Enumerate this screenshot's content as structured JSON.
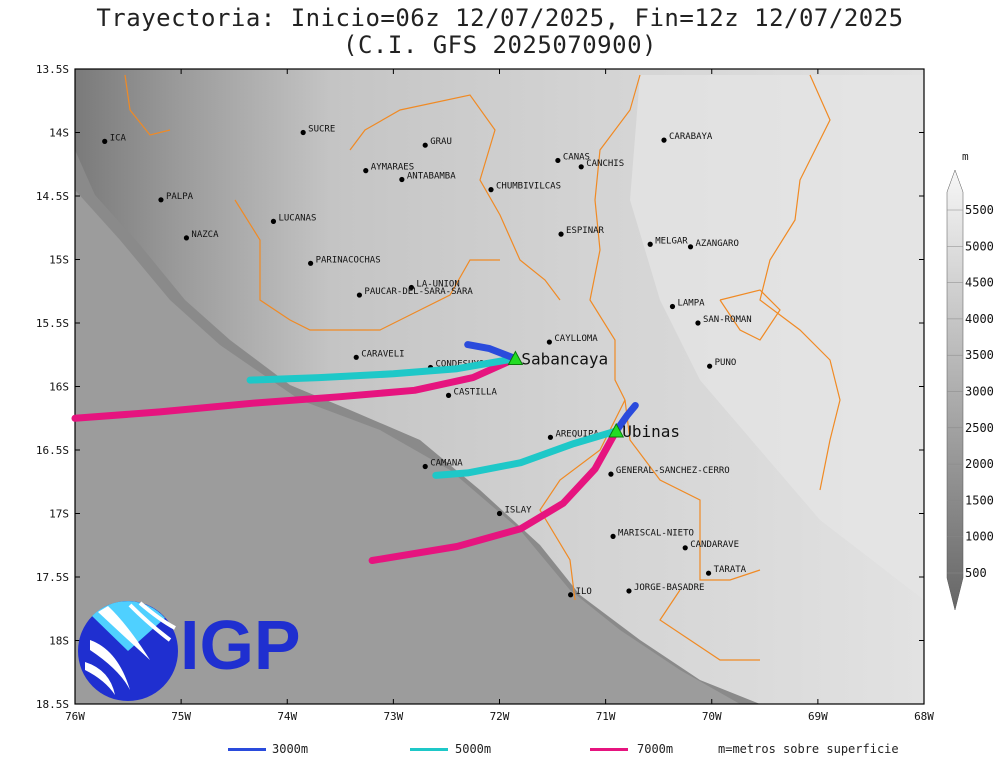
{
  "title": "Trayectoria: Inicio=06z 12/07/2025, Fin=12z 12/07/2025",
  "subtitle": "(C.I. GFS 2025070900)",
  "axes": {
    "lon_ticks": [
      "76W",
      "75W",
      "74W",
      "73W",
      "72W",
      "71W",
      "70W",
      "69W",
      "68W"
    ],
    "lat_ticks": [
      "13.5S",
      "14S",
      "14.5S",
      "15S",
      "15.5S",
      "16S",
      "16.5S",
      "17S",
      "17.5S",
      "18S",
      "18.5S"
    ],
    "lon_range": [
      -76,
      -68
    ],
    "lat_range": [
      -18.5,
      -13.5
    ]
  },
  "colorbar": {
    "unit": "m",
    "labels": [
      "5500",
      "5000",
      "4500",
      "4000",
      "3500",
      "3000",
      "2500",
      "2000",
      "1500",
      "1000",
      "500"
    ]
  },
  "legend": {
    "items": [
      {
        "label": "3000m",
        "color": "#2a4bdc"
      },
      {
        "label": "5000m",
        "color": "#1ec8c8"
      },
      {
        "label": "7000m",
        "color": "#e6147f"
      }
    ],
    "note": "m=metros sobre superficie"
  },
  "logo": {
    "text": "IGP"
  },
  "volcanoes": [
    {
      "name": "Sabancaya",
      "lon": -71.85,
      "lat": -15.78
    },
    {
      "name": "Ubinas",
      "lon": -70.9,
      "lat": -16.35
    }
  ],
  "places": [
    {
      "name": "ICA",
      "lon": -75.72,
      "lat": -14.07
    },
    {
      "name": "SUCRE",
      "lon": -73.85,
      "lat": -14.0
    },
    {
      "name": "GRAU",
      "lon": -72.7,
      "lat": -14.1
    },
    {
      "name": "AYMARAES",
      "lon": -73.26,
      "lat": -14.3
    },
    {
      "name": "ANTABAMBA",
      "lon": -72.92,
      "lat": -14.37
    },
    {
      "name": "CANAS",
      "lon": -71.45,
      "lat": -14.22
    },
    {
      "name": "CANCHIS",
      "lon": -71.23,
      "lat": -14.27
    },
    {
      "name": "CARABAYA",
      "lon": -70.45,
      "lat": -14.06
    },
    {
      "name": "CHUMBIVILCAS",
      "lon": -72.08,
      "lat": -14.45
    },
    {
      "name": "PALPA",
      "lon": -75.19,
      "lat": -14.53
    },
    {
      "name": "NAZCA",
      "lon": -74.95,
      "lat": -14.83
    },
    {
      "name": "LUCANAS",
      "lon": -74.13,
      "lat": -14.7
    },
    {
      "name": "ESPINAR",
      "lon": -71.42,
      "lat": -14.8
    },
    {
      "name": "MELGAR",
      "lon": -70.58,
      "lat": -14.88
    },
    {
      "name": "AZANGARO",
      "lon": -70.2,
      "lat": -14.9
    },
    {
      "name": "PARINACOCHAS",
      "lon": -73.78,
      "lat": -15.03
    },
    {
      "name": "LA-UNION",
      "lon": -72.83,
      "lat": -15.22
    },
    {
      "name": "PAUCAR-DEL-SARA-SARA",
      "lon": -73.32,
      "lat": -15.28
    },
    {
      "name": "LAMPA",
      "lon": -70.37,
      "lat": -15.37
    },
    {
      "name": "SAN-ROMAN",
      "lon": -70.13,
      "lat": -15.5
    },
    {
      "name": "CAYLLOMA",
      "lon": -71.53,
      "lat": -15.65
    },
    {
      "name": "CARAVELI",
      "lon": -73.35,
      "lat": -15.77
    },
    {
      "name": "CONDESUYOS",
      "lon": -72.65,
      "lat": -15.85
    },
    {
      "name": "PUNO",
      "lon": -70.02,
      "lat": -15.84
    },
    {
      "name": "CASTILLA",
      "lon": -72.48,
      "lat": -16.07
    },
    {
      "name": "AREQUIPA",
      "lon": -71.52,
      "lat": -16.4
    },
    {
      "name": "CAMANA",
      "lon": -72.7,
      "lat": -16.63
    },
    {
      "name": "GENERAL-SANCHEZ-CERRO",
      "lon": -70.95,
      "lat": -16.69
    },
    {
      "name": "ISLAY",
      "lon": -72.0,
      "lat": -17.0
    },
    {
      "name": "MARISCAL-NIETO",
      "lon": -70.93,
      "lat": -17.18
    },
    {
      "name": "CANDARAVE",
      "lon": -70.25,
      "lat": -17.27
    },
    {
      "name": "TARATA",
      "lon": -70.03,
      "lat": -17.47
    },
    {
      "name": "ILO",
      "lon": -71.33,
      "lat": -17.64
    },
    {
      "name": "JORGE-BASADRE",
      "lon": -70.78,
      "lat": -17.61
    }
  ],
  "trajectories": [
    {
      "volcano": "Sabancaya",
      "level": "3000m",
      "color": "#2a4bdc",
      "points": [
        [
          -71.85,
          -15.78
        ],
        [
          -72.1,
          -15.7
        ],
        [
          -72.3,
          -15.67
        ]
      ]
    },
    {
      "volcano": "Sabancaya",
      "level": "5000m",
      "color": "#1ec8c8",
      "points": [
        [
          -71.85,
          -15.78
        ],
        [
          -72.4,
          -15.86
        ],
        [
          -73.0,
          -15.9
        ],
        [
          -73.7,
          -15.93
        ],
        [
          -74.35,
          -15.95
        ]
      ]
    },
    {
      "volcano": "Sabancaya",
      "level": "7000m",
      "color": "#e6147f",
      "points": [
        [
          -71.85,
          -15.78
        ],
        [
          -72.25,
          -15.93
        ],
        [
          -72.8,
          -16.03
        ],
        [
          -73.5,
          -16.08
        ],
        [
          -74.3,
          -16.13
        ],
        [
          -75.2,
          -16.2
        ],
        [
          -76.0,
          -16.25
        ]
      ]
    },
    {
      "volcano": "Ubinas",
      "level": "3000m",
      "color": "#2a4bdc",
      "points": [
        [
          -70.9,
          -16.35
        ],
        [
          -70.8,
          -16.23
        ],
        [
          -70.72,
          -16.15
        ]
      ]
    },
    {
      "volcano": "Ubinas",
      "level": "5000m",
      "color": "#1ec8c8",
      "points": [
        [
          -70.9,
          -16.35
        ],
        [
          -71.3,
          -16.45
        ],
        [
          -71.8,
          -16.6
        ],
        [
          -72.3,
          -16.68
        ],
        [
          -72.6,
          -16.7
        ]
      ]
    },
    {
      "volcano": "Ubinas",
      "level": "7000m",
      "color": "#e6147f",
      "points": [
        [
          -70.9,
          -16.35
        ],
        [
          -71.1,
          -16.65
        ],
        [
          -71.4,
          -16.92
        ],
        [
          -71.8,
          -17.12
        ],
        [
          -72.4,
          -17.26
        ],
        [
          -73.2,
          -17.37
        ]
      ]
    }
  ]
}
